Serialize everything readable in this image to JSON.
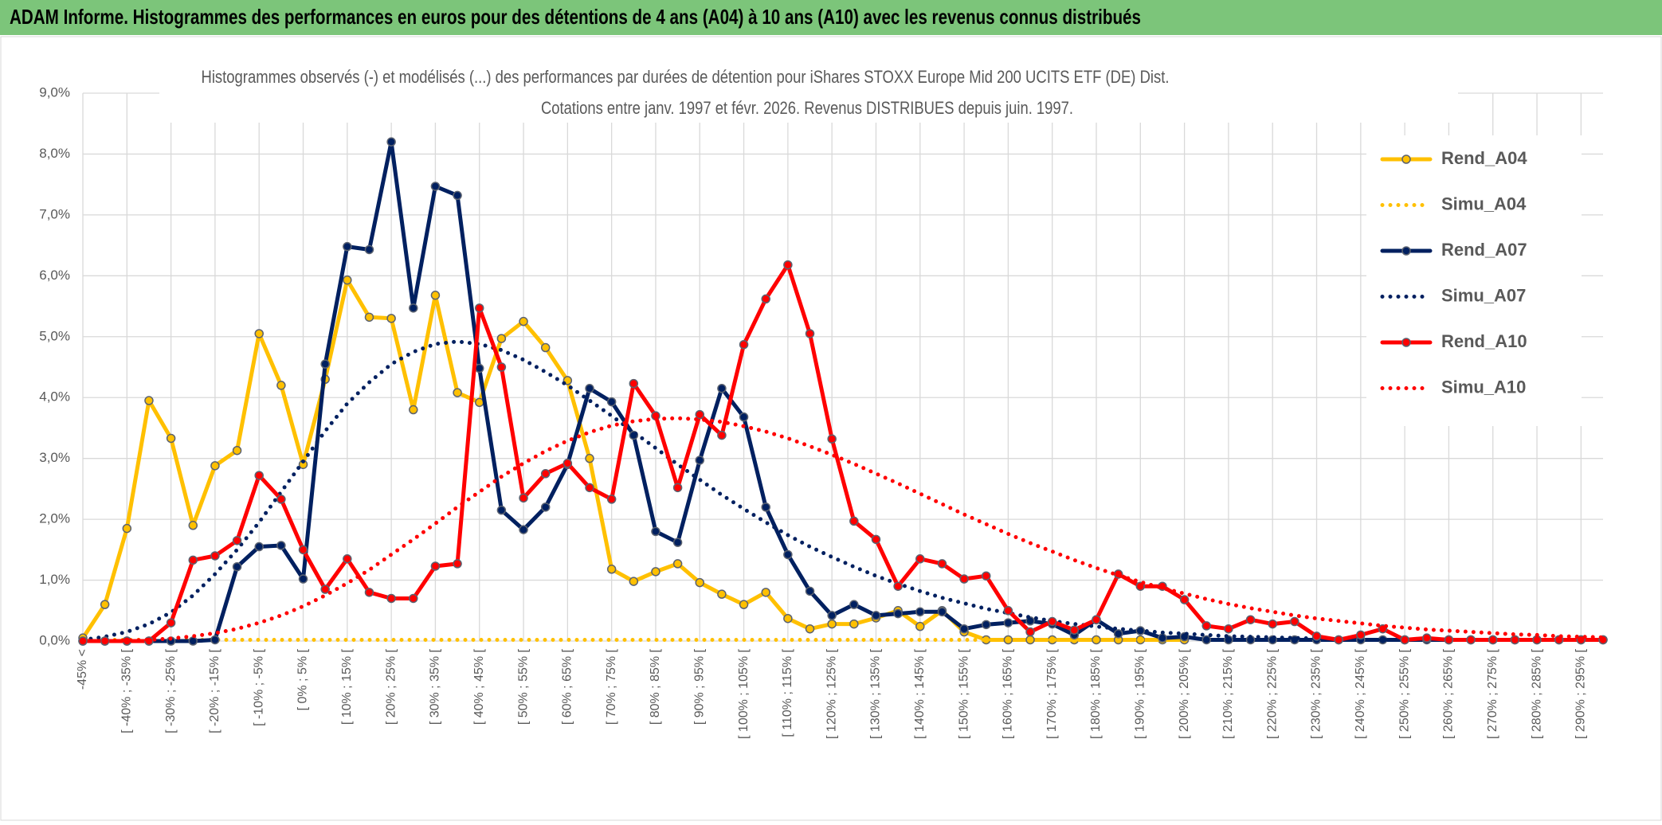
{
  "header": {
    "title": "ADAM Informe. Histogrammes des performances en euros pour des détentions de 4 ans (A04) à 10 ans (A10) avec les revenus connus distribués"
  },
  "chart_data": {
    "type": "line",
    "title": "Histogrammes observés (-) et modélisés (...) des performances par durées de détention pour iShares STOXX Europe Mid 200 UCITS ETF (DE) Dist.",
    "subtitle": "Cotations entre janv. 1997 et févr. 2026. Revenus DISTRIBUES depuis juin. 1997.",
    "categories": [
      "-45% <",
      null,
      "[ -40% ; -35% [",
      null,
      "[ -30% ; -25% [",
      null,
      "[ -20% ; -15% [",
      null,
      "[ -10% ; -5% [",
      null,
      "[ 0% ; 5% [",
      null,
      "[ 10% ; 15% [",
      null,
      "[ 20% ; 25% [",
      null,
      "[ 30% ; 35% [",
      null,
      "[ 40% ; 45% [",
      null,
      "[ 50% ; 55% [",
      null,
      "[ 60% ; 65% [",
      null,
      "[ 70% ; 75% [",
      null,
      "[ 80% ; 85% [",
      null,
      "[ 90% ; 95% [",
      null,
      "[ 100% ; 105% [",
      null,
      "[ 110% ; 115% [",
      null,
      "[ 120% ; 125% [",
      null,
      "[ 130% ; 135% [",
      null,
      "[ 140% ; 145% [",
      null,
      "[ 150% ; 155% [",
      null,
      "[ 160% ; 165% [",
      null,
      "[ 170% ; 175% [",
      null,
      "[ 180% ; 185% [",
      null,
      "[ 190% ; 195% [",
      null,
      "[ 200% ; 205% [",
      null,
      "[ 210% ; 215% [",
      null,
      "[ 220% ; 225% [",
      null,
      "[ 230% ; 235% [",
      null,
      "[ 240% ; 245% [",
      null,
      "[ 250% ; 255% [",
      null,
      "[ 260% ; 265% [",
      null,
      "[ 270% ; 275% [",
      null,
      "[ 280% ; 285% [",
      null,
      "[ 290% ; 295% [",
      null
    ],
    "series": [
      {
        "name": "Rend_A04",
        "color": "#ffc000",
        "style": "solid",
        "markers": true,
        "values": [
          0.05,
          0.6,
          1.85,
          3.95,
          3.33,
          1.9,
          2.88,
          3.13,
          5.05,
          4.2,
          2.9,
          4.3,
          5.93,
          5.32,
          5.3,
          3.8,
          5.68,
          4.08,
          3.92,
          4.97,
          5.25,
          4.82,
          4.28,
          3.0,
          1.18,
          0.98,
          1.14,
          1.27,
          0.96,
          0.77,
          0.6,
          0.8,
          0.37,
          0.2,
          0.28,
          0.28,
          0.38,
          0.5,
          0.24,
          0.5,
          0.15,
          0.02,
          0.02,
          0.02,
          0.02,
          0.02,
          0.02,
          0.02,
          0.02,
          0.02,
          0.02,
          null,
          null,
          null,
          null,
          null,
          null,
          null,
          null,
          null,
          null,
          null,
          null,
          null,
          null,
          null,
          null,
          null,
          null,
          null
        ]
      },
      {
        "name": "Simu_A04",
        "color": "#ffc000",
        "style": "dotted",
        "markers": false,
        "values": [
          0.02,
          0.02,
          0.02,
          0.02,
          0.02,
          0.02,
          0.02,
          0.02,
          0.02,
          0.02,
          0.02,
          0.02,
          0.02,
          0.02,
          0.02,
          0.02,
          0.02,
          0.02,
          0.02,
          0.02,
          0.02,
          0.02,
          0.02,
          0.02,
          0.02,
          0.02,
          0.02,
          0.02,
          0.02,
          0.02,
          0.02,
          0.02,
          0.02,
          0.02,
          0.02,
          0.02,
          0.02,
          0.02,
          0.02,
          0.02,
          0.02,
          0.02,
          0.02,
          0.02,
          0.02,
          0.02,
          0.02,
          0.02,
          0.02,
          0.02,
          0.02,
          null,
          null,
          null,
          null,
          null,
          null,
          null,
          null,
          null,
          null,
          null,
          null,
          null,
          null,
          null,
          null,
          null,
          null,
          null
        ]
      },
      {
        "name": "Rend_A07",
        "color": "#002060",
        "style": "solid",
        "markers": true,
        "values": [
          0,
          0,
          0,
          0,
          0,
          0,
          0.02,
          1.22,
          1.55,
          1.57,
          1.02,
          4.55,
          6.48,
          6.43,
          8.2,
          5.47,
          7.47,
          7.32,
          4.48,
          2.15,
          1.83,
          2.2,
          2.9,
          4.15,
          3.93,
          3.38,
          1.8,
          1.62,
          2.97,
          4.15,
          3.68,
          2.2,
          1.42,
          0.82,
          0.42,
          0.6,
          0.42,
          0.45,
          0.48,
          0.48,
          0.2,
          0.27,
          0.3,
          0.33,
          0.28,
          0.1,
          0.35,
          0.12,
          0.17,
          0.05,
          0.07,
          0.02,
          0.02,
          0.02,
          0.02,
          0.02,
          0.02,
          0.02,
          0.02,
          0.02,
          0.02,
          0.02,
          0.02,
          0.02,
          0.02,
          0.02,
          0.02,
          0.02,
          0.02,
          0.02
        ]
      },
      {
        "name": "Simu_A07",
        "color": "#002060",
        "style": "dotted",
        "markers": false,
        "values": [
          0.02,
          0.07,
          0.15,
          0.28,
          0.47,
          0.75,
          1.1,
          1.5,
          1.95,
          2.45,
          2.95,
          3.45,
          3.9,
          4.25,
          4.55,
          4.75,
          4.88,
          4.92,
          4.88,
          4.78,
          4.62,
          4.42,
          4.2,
          3.95,
          3.7,
          3.43,
          3.17,
          2.9,
          2.65,
          2.4,
          2.17,
          1.95,
          1.74,
          1.55,
          1.38,
          1.22,
          1.07,
          0.94,
          0.82,
          0.71,
          0.62,
          0.53,
          0.46,
          0.39,
          0.33,
          0.28,
          0.24,
          0.2,
          0.17,
          0.14,
          0.12,
          0.1,
          0.08,
          0.07,
          0.06,
          0.05,
          0.04,
          0.03,
          0.02,
          0.02,
          0.02,
          0.02,
          0.02,
          0.02,
          0.02,
          0.02,
          0.02,
          0.02,
          0.02,
          0.02
        ]
      },
      {
        "name": "Rend_A10",
        "color": "#ff0000",
        "style": "solid",
        "markers": true,
        "values": [
          0,
          0,
          0,
          0,
          0.3,
          1.33,
          1.4,
          1.65,
          2.72,
          2.33,
          1.5,
          0.85,
          1.35,
          0.8,
          0.7,
          0.7,
          1.23,
          1.27,
          5.47,
          4.5,
          2.35,
          2.75,
          2.92,
          2.52,
          2.33,
          4.23,
          3.7,
          2.52,
          3.72,
          3.38,
          4.87,
          5.62,
          6.18,
          5.05,
          3.32,
          1.97,
          1.67,
          0.9,
          1.35,
          1.27,
          1.02,
          1.07,
          0.5,
          0.15,
          0.32,
          0.18,
          0.35,
          1.1,
          0.9,
          0.9,
          0.68,
          0.25,
          0.2,
          0.35,
          0.28,
          0.32,
          0.08,
          0.02,
          0.1,
          0.2,
          0.02,
          0.05,
          0.02,
          0.02,
          0.02,
          0.02,
          0.02,
          0.02,
          0.02,
          0.02
        ]
      },
      {
        "name": "Simu_A10",
        "color": "#ff0000",
        "style": "dotted",
        "markers": false,
        "values": [
          0,
          0,
          0.01,
          0.02,
          0.04,
          0.08,
          0.13,
          0.2,
          0.3,
          0.42,
          0.57,
          0.75,
          0.95,
          1.17,
          1.42,
          1.67,
          1.93,
          2.2,
          2.45,
          2.7,
          2.92,
          3.12,
          3.29,
          3.43,
          3.54,
          3.61,
          3.65,
          3.66,
          3.64,
          3.6,
          3.53,
          3.44,
          3.33,
          3.2,
          3.06,
          2.91,
          2.75,
          2.59,
          2.42,
          2.25,
          2.08,
          1.92,
          1.76,
          1.61,
          1.47,
          1.33,
          1.2,
          1.08,
          0.97,
          0.87,
          0.78,
          0.69,
          0.61,
          0.54,
          0.48,
          0.42,
          0.37,
          0.33,
          0.29,
          0.25,
          0.22,
          0.19,
          0.17,
          0.15,
          0.13,
          0.11,
          0.1,
          0.08,
          0.07,
          0.06
        ]
      }
    ],
    "ylim": [
      0,
      9
    ],
    "yticks": [
      {
        "value": 0,
        "label": "0,0%"
      },
      {
        "value": 1,
        "label": "1,0%"
      },
      {
        "value": 2,
        "label": "2,0%"
      },
      {
        "value": 3,
        "label": "3,0%"
      },
      {
        "value": 4,
        "label": "4,0%"
      },
      {
        "value": 5,
        "label": "5,0%"
      },
      {
        "value": 6,
        "label": "6,0%"
      },
      {
        "value": 7,
        "label": "7,0%"
      },
      {
        "value": 8,
        "label": "8,0%"
      },
      {
        "value": 9,
        "label": "9,0%"
      }
    ],
    "grid": true,
    "legend": "right"
  }
}
